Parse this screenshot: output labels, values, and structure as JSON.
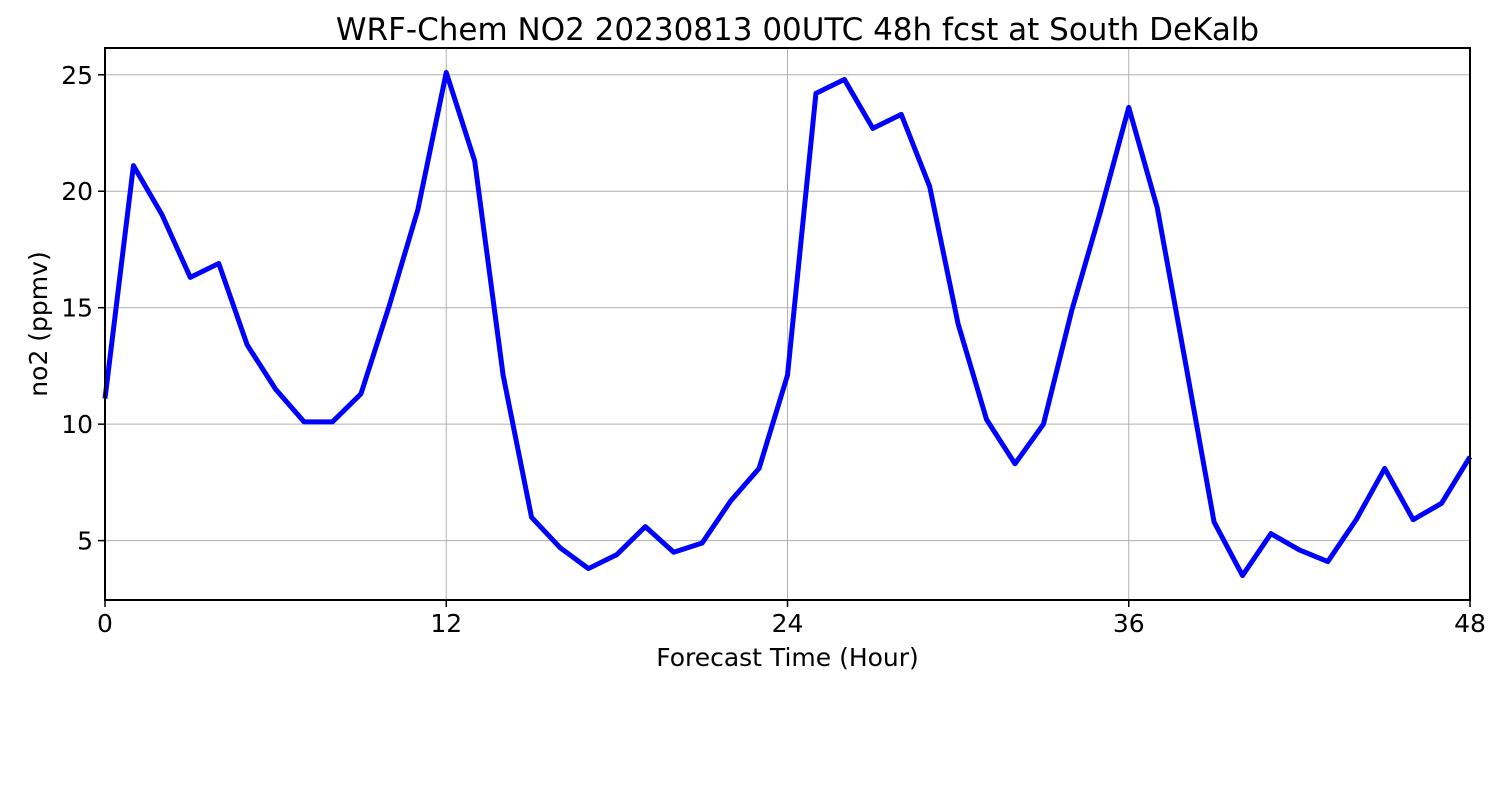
{
  "chart_data": {
    "type": "line",
    "title": "WRF-Chem NO2  20230813 00UTC 48h fcst at South DeKalb",
    "xlabel": "Forecast Time (Hour)",
    "ylabel": "no2  (ppmv)",
    "xlim": [
      0,
      48
    ],
    "ylim": [
      2.45,
      26.15
    ],
    "xticks": [
      0,
      12,
      24,
      36,
      48
    ],
    "yticks": [
      5,
      10,
      15,
      20,
      25
    ],
    "grid": true,
    "line_color": "#0000ff",
    "x": [
      0,
      1,
      2,
      3,
      4,
      5,
      6,
      7,
      8,
      9,
      10,
      11,
      12,
      13,
      14,
      15,
      16,
      17,
      18,
      19,
      20,
      21,
      22,
      23,
      24,
      25,
      26,
      27,
      28,
      29,
      30,
      31,
      32,
      33,
      34,
      35,
      36,
      37,
      38,
      39,
      40,
      41,
      42,
      43,
      44,
      45,
      46,
      47,
      48
    ],
    "series": [
      {
        "values": [
          11.1,
          21.1,
          19.0,
          16.3,
          16.9,
          13.4,
          11.5,
          10.1,
          10.1,
          11.3,
          15.1,
          19.2,
          25.1,
          21.3,
          12.1,
          6.0,
          4.7,
          3.8,
          4.4,
          5.6,
          4.5,
          4.9,
          6.7,
          8.1,
          12.1,
          24.2,
          24.8,
          22.7,
          23.3,
          20.2,
          14.3,
          10.2,
          8.3,
          10.0,
          14.9,
          19.1,
          23.6,
          19.3,
          12.6,
          5.8,
          3.5,
          5.3,
          4.6,
          4.1,
          5.9,
          8.1,
          5.9,
          6.6,
          8.6
        ]
      }
    ]
  }
}
